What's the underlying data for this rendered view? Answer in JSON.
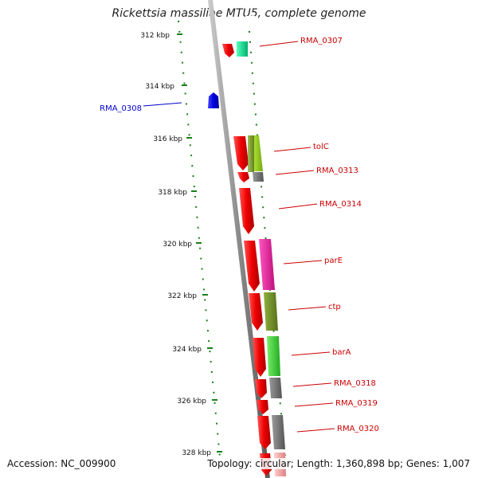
{
  "title": "Rickettsia massiliae MTU5, complete genome",
  "accession": "Accession: NC_009900",
  "summary": "Topology: circular; Length: 1,360,898 bp; Genes: 1,007",
  "scale_labels": [
    "312 kbp",
    "314 kbp",
    "316 kbp",
    "318 kbp",
    "320 kbp",
    "322 kbp",
    "324 kbp",
    "326 kbp",
    "328 kbp"
  ],
  "genes": [
    {
      "label": "RMA_0307",
      "color": "#cc0000"
    },
    {
      "label": "RMA_0308",
      "color": "#0000cc"
    },
    {
      "label": "tolC",
      "color": "#cc0000"
    },
    {
      "label": "RMA_0313",
      "color": "#cc0000"
    },
    {
      "label": "RMA_0314",
      "color": "#cc0000"
    },
    {
      "label": "parE",
      "color": "#cc0000"
    },
    {
      "label": "ctp",
      "color": "#cc0000"
    },
    {
      "label": "barA",
      "color": "#cc0000"
    },
    {
      "label": "RMA_0318",
      "color": "#cc0000"
    },
    {
      "label": "RMA_0319",
      "color": "#cc0000"
    },
    {
      "label": "RMA_0320",
      "color": "#cc0000"
    }
  ],
  "colors": {
    "cds_forward": "#ff0000",
    "cds_reverse": "#0000ff",
    "backbone": "#8c8c8c",
    "gc_dots": "#1a7f1a",
    "cog_teal": "#00d98a",
    "cog_lime": "#99cc22",
    "cog_olive": "#6e8e2a",
    "cog_gray": "#707070",
    "cog_magenta": "#e01f9a",
    "cog_green": "#33cc33",
    "cog_pink": "#f0a0a0"
  }
}
